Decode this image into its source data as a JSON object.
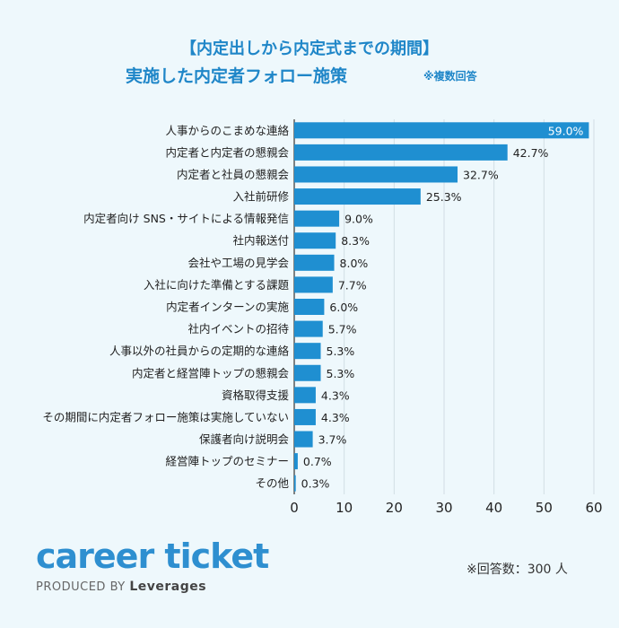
{
  "title": {
    "line1": "【内定出しから内定式までの期間】",
    "line2": "実施した内定者フォロー施策",
    "note": "※複数回答"
  },
  "logo": {
    "main": "career ticket",
    "sub_prefix": "PRODUCED BY",
    "sub_brand": "Leverages"
  },
  "respondents": "※回答数：300 人",
  "colors": {
    "bar": "#1f8fd1",
    "title": "#1f86c8",
    "background": "#eef8fc"
  },
  "chart_data": {
    "type": "bar",
    "orientation": "horizontal",
    "categories": [
      "人事からのこまめな連絡",
      "内定者と内定者の懇親会",
      "内定者と社員の懇親会",
      "入社前研修",
      "内定者向け SNS・サイトによる情報発信",
      "社内報送付",
      "会社や工場の見学会",
      "入社に向けた準備とする課題",
      "内定者インターンの実施",
      "社内イベントの招待",
      "人事以外の社員からの定期的な連絡",
      "内定者と経営陣トップの懇親会",
      "資格取得支援",
      "その期間に内定者フォロー施策は実施していない",
      "保護者向け説明会",
      "経営陣トップのセミナー",
      "その他"
    ],
    "values": [
      59.0,
      42.7,
      32.7,
      25.3,
      9.0,
      8.3,
      8.0,
      7.7,
      6.0,
      5.7,
      5.3,
      5.3,
      4.3,
      4.3,
      3.7,
      0.7,
      0.3
    ],
    "value_labels": [
      "59.0%",
      "42.7%",
      "32.7%",
      "25.3%",
      "9.0%",
      "8.3%",
      "8.0%",
      "7.7%",
      "6.0%",
      "5.7%",
      "5.3%",
      "5.3%",
      "4.3%",
      "4.3%",
      "3.7%",
      "0.7%",
      "0.3%"
    ],
    "xlim": [
      0,
      60
    ],
    "xticks": [
      0,
      10,
      20,
      30,
      40,
      50,
      60
    ],
    "grid": true
  }
}
